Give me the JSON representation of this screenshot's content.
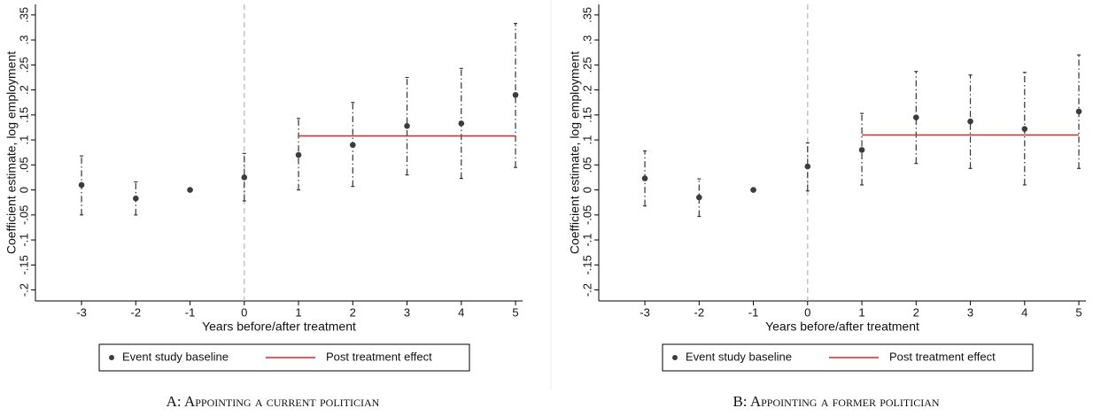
{
  "chart_data": [
    {
      "type": "errorbar",
      "xlabel": "Years before/after treatment",
      "ylabel": "Coefficient estimate, log employment",
      "caption": "A: Appointing a current politician",
      "x": [
        -3,
        -2,
        -1,
        0,
        1,
        2,
        3,
        4,
        5
      ],
      "series": [
        {
          "name": "Event study baseline",
          "color": "#3c3c3c",
          "values": [
            0.01,
            -0.017,
            0,
            0.025,
            0.07,
            0.09,
            0.128,
            0.133,
            0.19
          ],
          "ci_low": [
            -0.05,
            -0.05,
            0,
            -0.022,
            0.0,
            0.007,
            0.03,
            0.023,
            0.045
          ],
          "ci_high": [
            0.068,
            0.016,
            0,
            0.073,
            0.143,
            0.175,
            0.225,
            0.243,
            0.333
          ]
        }
      ],
      "lines": [
        {
          "name": "Post treatment effect",
          "color": "#e3242b",
          "x": [
            1,
            5
          ],
          "values": [
            0.108,
            0.108
          ]
        }
      ],
      "vline": 0,
      "xlim": [
        -3.85,
        5.13
      ],
      "xticks": [
        -3,
        -2,
        -1,
        0,
        1,
        2,
        3,
        4,
        5
      ],
      "ylim": [
        -0.222,
        0.371
      ],
      "yticks": [
        {
          "value": -0.2,
          "label": "-.2"
        },
        {
          "value": -0.15,
          "label": "-.15"
        },
        {
          "value": -0.1,
          "label": "-.1"
        },
        {
          "value": -0.05,
          "label": "-.05"
        },
        0,
        {
          "value": 0.05,
          "label": ".05"
        },
        {
          "value": 0.1,
          "label": ".1"
        },
        {
          "value": 0.15,
          "label": ".15"
        },
        {
          "value": 0.2,
          "label": ".2"
        },
        {
          "value": 0.25,
          "label": ".25"
        },
        {
          "value": 0.3,
          "label": ".3"
        },
        {
          "value": 0.35,
          "label": ".35"
        }
      ]
    },
    {
      "type": "errorbar",
      "xlabel": "Years before/after treatment",
      "ylabel": "Coefficient estimate, log employment",
      "caption": "B: Appointing a former politician",
      "x": [
        -3,
        -2,
        -1,
        0,
        1,
        2,
        3,
        4,
        5
      ],
      "series": [
        {
          "name": "Event study baseline",
          "color": "#3c3c3c",
          "values": [
            0.023,
            -0.015,
            0,
            0.047,
            0.08,
            0.145,
            0.137,
            0.122,
            0.157
          ],
          "ci_low": [
            -0.032,
            -0.053,
            0,
            -0.002,
            0.01,
            0.053,
            0.043,
            0.01,
            0.043
          ],
          "ci_high": [
            0.078,
            0.022,
            0,
            0.094,
            0.153,
            0.237,
            0.23,
            0.235,
            0.27
          ]
        }
      ],
      "lines": [
        {
          "name": "Post treatment effect",
          "color": "#e3242b",
          "x": [
            1,
            5
          ],
          "values": [
            0.11,
            0.11
          ]
        }
      ],
      "vline": 0,
      "xlim": [
        -3.85,
        5.13
      ],
      "xticks": [
        -3,
        -2,
        -1,
        0,
        1,
        2,
        3,
        4,
        5
      ],
      "ylim": [
        -0.222,
        0.371
      ],
      "yticks": [
        {
          "value": -0.2,
          "label": "-.2"
        },
        {
          "value": -0.15,
          "label": "-.15"
        },
        {
          "value": -0.1,
          "label": "-.1"
        },
        {
          "value": -0.05,
          "label": "-.05"
        },
        0,
        {
          "value": 0.05,
          "label": ".05"
        },
        {
          "value": 0.1,
          "label": ".1"
        },
        {
          "value": 0.15,
          "label": ".15"
        },
        {
          "value": 0.2,
          "label": ".2"
        },
        {
          "value": 0.25,
          "label": ".25"
        },
        {
          "value": 0.3,
          "label": ".3"
        },
        {
          "value": 0.35,
          "label": ".35"
        }
      ]
    }
  ]
}
